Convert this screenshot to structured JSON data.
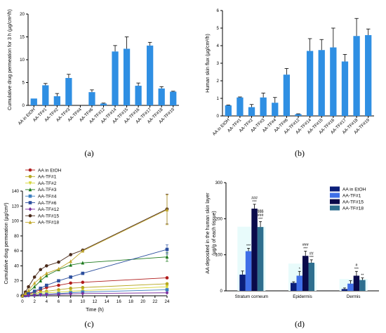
{
  "chart_data": [
    {
      "type": "bar",
      "panel_label": "(a)",
      "ylabel": "Cumulative drug permeation for 3 h (µg/cm²/h)",
      "ylim": [
        0,
        20
      ],
      "yticks": [
        "0",
        "5",
        "10",
        "15",
        "20"
      ],
      "color": "#2f8fe3",
      "categories": [
        "AA in EtOH",
        "AA-TF#1",
        "AA-TF#2",
        "AA-TF#3",
        "AA-TF#4",
        "AA-TF#6",
        "AA-TF#12",
        "AA-TF#14",
        "AA-TF#15",
        "AA-TF#16",
        "AA-TF#17",
        "AA-TF#18",
        "AA-TF#19"
      ],
      "values": [
        1.5,
        4.4,
        2.0,
        6.0,
        0.0,
        2.9,
        0.4,
        11.8,
        12.4,
        4.3,
        13.1,
        3.7,
        3.0
      ],
      "errors": [
        0.0,
        0.4,
        0.6,
        0.8,
        0.0,
        0.5,
        0.1,
        1.3,
        2.6,
        0.6,
        0.7,
        0.4,
        0.1
      ]
    },
    {
      "type": "bar",
      "panel_label": "(b)",
      "ylabel": "Human skin flux (µg/cm²/h)",
      "ylim": [
        0,
        6
      ],
      "yticks": [
        "0",
        "1",
        "2",
        "3",
        "4",
        "5",
        "6"
      ],
      "color": "#2f8fe3",
      "categories": [
        "AA in EtOH",
        "AA-TF#1",
        "AA-TF#2",
        "AA-TF#3",
        "AA-TF#4",
        "AA-TF#6",
        "AA-TF#12",
        "AA-TF#14",
        "AA-TF#15",
        "AA-TF#16",
        "AA-TF#17",
        "AA-TF#18",
        "AA-TF#19"
      ],
      "values": [
        0.6,
        1.05,
        0.5,
        1.05,
        0.75,
        2.35,
        0.1,
        3.7,
        3.75,
        3.9,
        3.1,
        4.55,
        4.6
      ],
      "errors": [
        0.02,
        0.03,
        0.15,
        0.25,
        0.3,
        0.35,
        0.02,
        0.7,
        0.6,
        1.1,
        0.4,
        1.0,
        0.35
      ]
    },
    {
      "type": "line",
      "panel_label": "(c)",
      "xlabel": "Time (h)",
      "ylabel": "Cumulative drug permeation (µg/cm²)",
      "xlim": [
        0,
        24
      ],
      "ylim": [
        0,
        140
      ],
      "xticks": [
        "0",
        "2",
        "4",
        "6",
        "8",
        "10",
        "12",
        "14",
        "16",
        "18",
        "20",
        "22",
        "24"
      ],
      "yticks": [
        "0",
        "20",
        "40",
        "60",
        "80",
        "100",
        "120",
        "140"
      ],
      "legend": "top-left",
      "x": [
        0,
        0.5,
        1,
        2,
        3,
        4,
        6,
        8,
        10,
        24
      ],
      "series": [
        {
          "name": "AA in EtOH",
          "color": "#b01c1c",
          "marker": "circle",
          "values": [
            0,
            1,
            2,
            5,
            8,
            11,
            14,
            17,
            18,
            24
          ],
          "error_last": 1
        },
        {
          "name": "AA-TF#1",
          "color": "#b7a820",
          "marker": "circle",
          "values": [
            0,
            0.5,
            1,
            3,
            5,
            6,
            8,
            10,
            11,
            16
          ],
          "error_last": 1
        },
        {
          "name": "AA-TF#2",
          "color": "#d6d636",
          "marker": "triangle-down",
          "values": [
            0,
            0.5,
            1,
            2,
            3,
            4,
            5,
            6,
            7,
            12
          ],
          "error_last": 1
        },
        {
          "name": "AA-TF#3",
          "color": "#1e7a1e",
          "marker": "triangle-up",
          "values": [
            0,
            2,
            5,
            12,
            20,
            27,
            35,
            41,
            44,
            52
          ],
          "error_last": 6
        },
        {
          "name": "AA-TF#4",
          "color": "#3d7fc0",
          "marker": "square",
          "values": [
            0,
            0.3,
            0.6,
            1,
            1.5,
            2,
            3,
            4,
            5,
            8
          ],
          "error_last": 1
        },
        {
          "name": "AA-TF#6",
          "color": "#2c4f9e",
          "marker": "square",
          "values": [
            0,
            1,
            3,
            6,
            10,
            14,
            20,
            25,
            30,
            62
          ],
          "error_last": 6
        },
        {
          "name": "AA-TF#12",
          "color": "#7b2f9e",
          "marker": "diamond",
          "values": [
            0,
            0.2,
            0.4,
            0.8,
            1.2,
            1.6,
            2,
            2.5,
            3,
            4
          ],
          "error_last": 0.5
        },
        {
          "name": "AA-TF#15",
          "color": "#4a2a1a",
          "marker": "circle",
          "values": [
            0,
            5,
            12,
            25,
            35,
            40,
            45,
            55,
            61,
            116
          ],
          "error_last": 20
        },
        {
          "name": "AA-TF#18",
          "color": "#c2a82c",
          "marker": "triangle-up",
          "values": [
            0,
            3,
            7,
            17,
            24,
            30,
            36,
            46,
            60,
            115
          ],
          "error_last": 20
        }
      ]
    },
    {
      "type": "bar",
      "panel_label": "(d)",
      "ylabel": "AA deposited in the human skin layer (µg/g of each tissue)",
      "ylim": [
        0,
        300
      ],
      "yticks": [
        "0",
        "100",
        "200",
        "300"
      ],
      "legend": "top-right",
      "categories": [
        "Stratum corneum",
        "Epidermis",
        "Dermis"
      ],
      "series": [
        {
          "name": "AA in EtOH",
          "color": "#0b1f7a",
          "values": [
            45,
            22,
            5
          ],
          "errors": [
            10,
            3,
            3
          ],
          "annot": [
            "",
            "",
            ""
          ]
        },
        {
          "name": "AA-TF#1",
          "color": "#3f6fe8",
          "values": [
            110,
            42,
            20
          ],
          "errors": [
            8,
            12,
            8
          ],
          "annot": [
            "***",
            "*",
            ""
          ]
        },
        {
          "name": "AA-TF#15",
          "color": "#0a0a4a",
          "values": [
            228,
            97,
            42
          ],
          "errors": [
            12,
            13,
            12
          ],
          "annot": [
            "###\n***",
            "###\n***",
            "#\n***"
          ]
        },
        {
          "name": "AA-TF#18",
          "color": "#2e6f8f",
          "values": [
            177,
            78,
            30
          ],
          "errors": [
            15,
            8,
            6
          ],
          "annot": [
            "$$$\n###\n***",
            "##\n***",
            "**"
          ]
        }
      ]
    }
  ]
}
